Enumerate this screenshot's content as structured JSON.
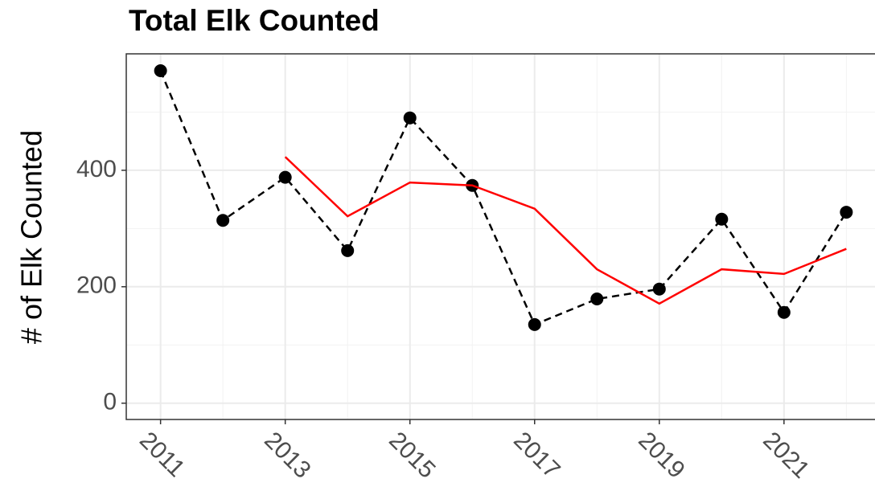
{
  "chart_data": {
    "type": "line",
    "title": "Total Elk Counted",
    "y_label": "# of Elk Counted",
    "x": [
      2011,
      2012,
      2013,
      2014,
      2015,
      2016,
      2017,
      2018,
      2019,
      2020,
      2021,
      2022
    ],
    "series": [
      {
        "color": "#000000",
        "dashed": true,
        "markers": true,
        "values": [
          571,
          314,
          388,
          262,
          490,
          374,
          135,
          179,
          196,
          316,
          156,
          328
        ]
      },
      {
        "color": "#ff0000",
        "dashed": false,
        "markers": false,
        "values": [
          null,
          null,
          423,
          321,
          379,
          374,
          334,
          230,
          171,
          230,
          222,
          265
        ]
      }
    ],
    "xlim": [
      2010.45,
      2022.55
    ],
    "xticks": [
      2011,
      2013,
      2015,
      2017,
      2019,
      2021
    ],
    "xminorticks": [
      2012,
      2014,
      2016,
      2018,
      2020,
      2022
    ],
    "ylim": [
      -28,
      600
    ],
    "yticks": [
      0,
      200,
      400
    ],
    "yminorticks": [
      100,
      300,
      500
    ],
    "grid": true
  }
}
